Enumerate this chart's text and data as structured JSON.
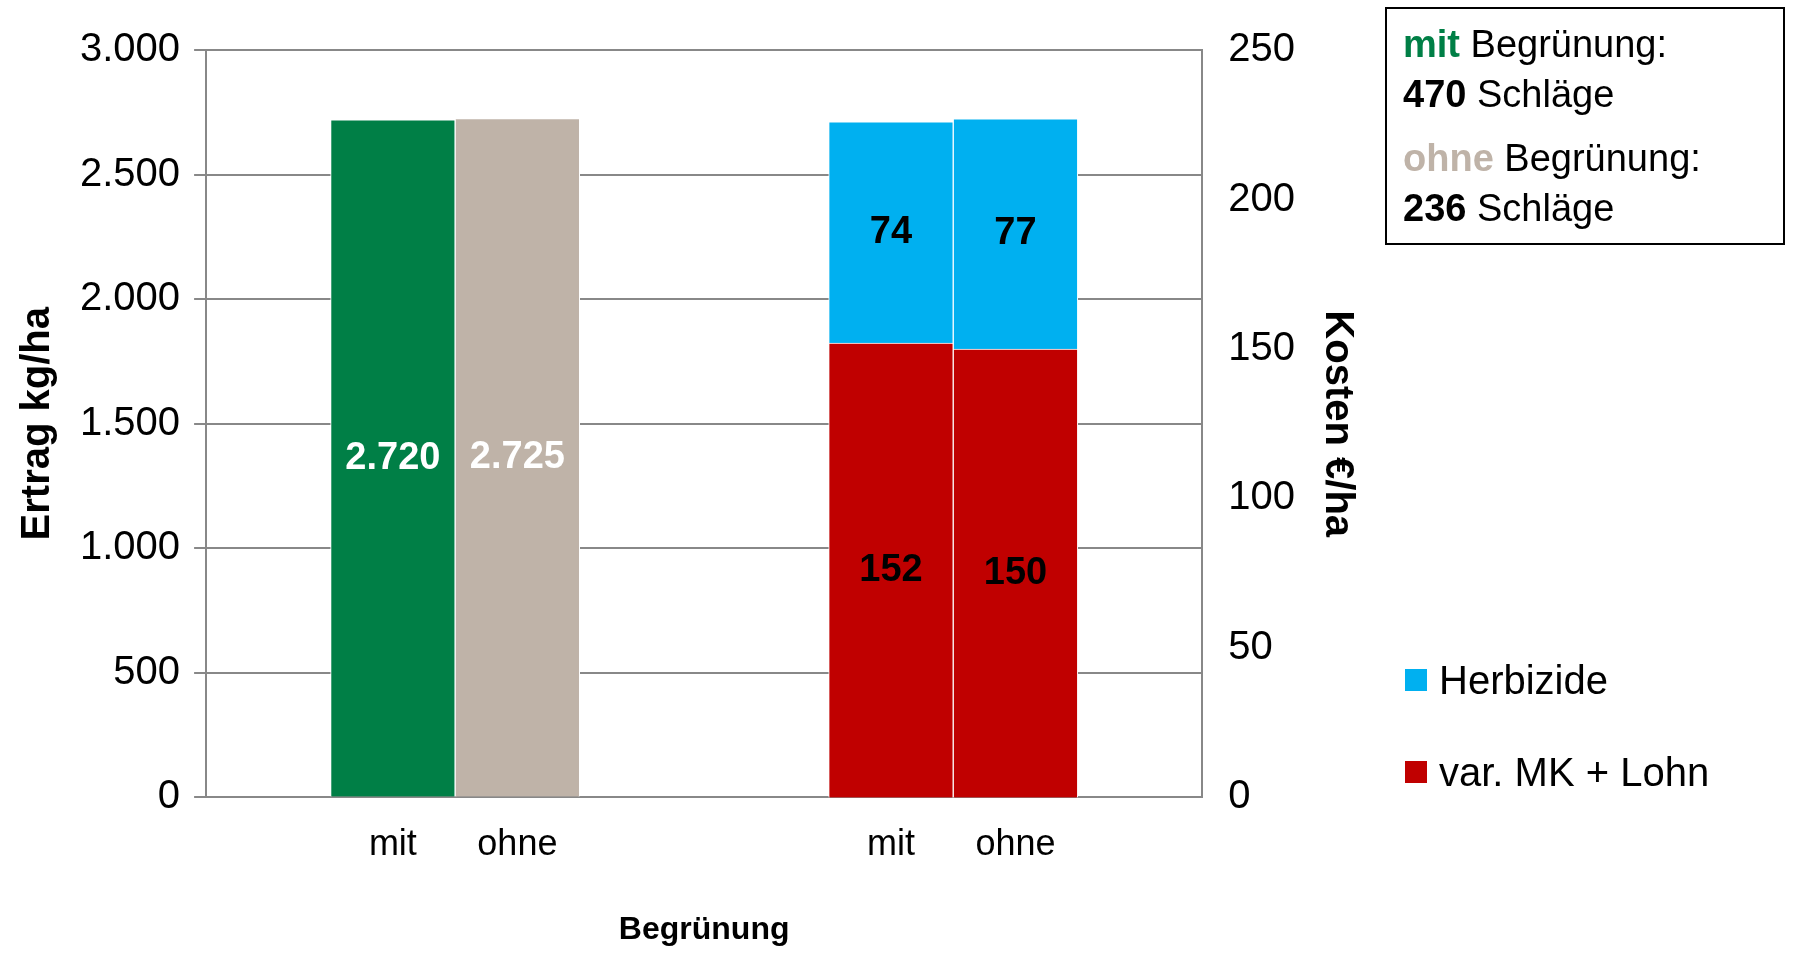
{
  "chart_data": {
    "type": "bar",
    "categories": [
      null,
      "mit",
      "ohne",
      null,
      null,
      "mit",
      "ohne",
      null
    ],
    "xlabel": "Begrünung",
    "ylabel": "Ertrag kg/ha",
    "y2label": "Kosten €/ha",
    "series": [
      {
        "axis": "y",
        "colors": [
          "#007f46",
          "#007f46",
          "#bfb3a8",
          "#007f46",
          "#007f46",
          "#007f46",
          "#007f46",
          "#007f46"
        ],
        "values": [
          null,
          2720,
          2725,
          null,
          null,
          null,
          null,
          null
        ],
        "value_labels": [
          null,
          "2.720",
          "2.725",
          null,
          null,
          null,
          null,
          null
        ]
      },
      {
        "axis": "y2",
        "name": "var. MK + Lohn",
        "color": "#c00000",
        "values": [
          null,
          null,
          null,
          null,
          null,
          152,
          150,
          null
        ],
        "value_labels": [
          null,
          null,
          null,
          null,
          null,
          "152",
          "150",
          null
        ]
      },
      {
        "axis": "y2",
        "name": "Herbizide",
        "color": "#00b0f0",
        "values": [
          null,
          null,
          null,
          null,
          null,
          74,
          77,
          null
        ],
        "value_labels": [
          null,
          null,
          null,
          null,
          null,
          "74",
          "77",
          null
        ]
      }
    ],
    "stacked": true,
    "ylim": [
      0,
      3000
    ],
    "yticks": [
      0,
      500,
      {
        "value": 1000,
        "label": "1.000"
      },
      {
        "value": 1500,
        "label": "1.500"
      },
      {
        "value": 2000,
        "label": "2.000"
      },
      {
        "value": 2500,
        "label": "2.500"
      },
      {
        "value": 3000,
        "label": "3.000"
      }
    ],
    "y2lim": [
      0,
      250
    ],
    "y2ticks": [
      0,
      50,
      100,
      150,
      200,
      250
    ],
    "grid": "y",
    "legend": "bottom right",
    "annotations": [
      "mit Begrünung: 470 Schläge",
      "ohne Begrünung: 236 Schläge"
    ]
  }
}
